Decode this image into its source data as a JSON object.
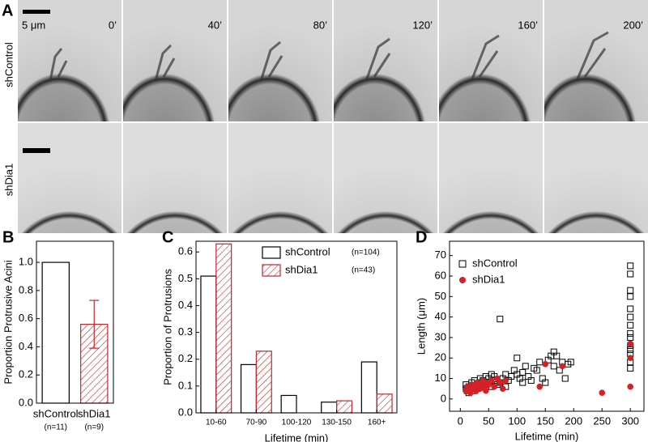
{
  "panel_a": {
    "label": "A",
    "scale_bar": "5 μm",
    "times": [
      "0’",
      "40’",
      "80’",
      "120’",
      "160’",
      "200’"
    ],
    "rows": [
      "shControl",
      "shDia1"
    ]
  },
  "chart_data": [
    {
      "type": "bar",
      "panel": "B",
      "y_label": "Proportion Protrusive Acini",
      "categories": [
        "shControl",
        "shDia1"
      ],
      "category_notes": [
        "(n=11)",
        "(n=9)"
      ],
      "values": [
        1.0,
        0.56
      ],
      "errors": [
        null,
        0.17
      ],
      "colors": [
        "#000000",
        "#c0272d"
      ],
      "hatch": [
        false,
        true
      ],
      "ylim": [
        0,
        1.15
      ],
      "yticks": [
        {
          "value": 0,
          "label": "0.0"
        },
        {
          "value": 0.2,
          "label": "0.2"
        },
        {
          "value": 0.4,
          "label": "0.4"
        },
        {
          "value": 0.6,
          "label": "0.6"
        },
        {
          "value": 0.8,
          "label": "0.8"
        },
        {
          "value": 1,
          "label": "1.0"
        }
      ]
    },
    {
      "type": "bar",
      "panel": "C",
      "y_label": "Proportion of Protrusions",
      "x_label": "Lifetime (min)",
      "categories": [
        "10-60",
        "70-90",
        "100-120",
        "130-150",
        "160+"
      ],
      "series": [
        {
          "name": "shControl",
          "note": "(n=104)",
          "color": "#000000",
          "hatch": false,
          "values": [
            0.51,
            0.18,
            0.065,
            0.04,
            0.19
          ]
        },
        {
          "name": "shDia1",
          "note": "(n=43)",
          "color": "#c0272d",
          "hatch": true,
          "values": [
            0.63,
            0.23,
            0,
            0.045,
            0.07
          ]
        }
      ],
      "ylim": [
        0,
        0.64
      ],
      "yticks": [
        {
          "value": 0,
          "label": "0.0"
        },
        0.1,
        0.2,
        0.3,
        0.4,
        0.5,
        0.6
      ]
    },
    {
      "type": "scatter",
      "panel": "D",
      "y_label": "Length (μm)",
      "x_label": "Lifetime (min)",
      "series": [
        {
          "name": "shControl",
          "color": "#000000",
          "marker": "square",
          "x": [
            10,
            10,
            12,
            15,
            15,
            20,
            20,
            22,
            25,
            25,
            30,
            30,
            35,
            35,
            40,
            40,
            45,
            45,
            50,
            50,
            55,
            55,
            60,
            60,
            65,
            70,
            70,
            75,
            80,
            80,
            85,
            90,
            95,
            100,
            100,
            105,
            110,
            110,
            115,
            120,
            125,
            130,
            135,
            140,
            145,
            150,
            155,
            160,
            165,
            165,
            170,
            175,
            180,
            185,
            190,
            195,
            300,
            300,
            300,
            300,
            300,
            300,
            300,
            300,
            300,
            300,
            300,
            300,
            300,
            300
          ],
          "y": [
            5,
            7,
            4,
            6,
            3,
            8,
            5,
            6,
            4,
            9,
            7,
            5,
            8,
            10,
            6,
            9,
            11,
            7,
            10,
            8,
            6,
            12,
            9,
            11,
            7,
            39,
            8,
            10,
            12,
            6,
            9,
            11,
            14,
            12,
            20,
            10,
            8,
            13,
            16,
            11,
            9,
            15,
            14,
            18,
            10,
            8,
            19,
            21,
            16,
            23,
            21,
            14,
            18,
            10,
            17,
            18,
            65,
            61,
            53,
            50,
            44,
            40,
            36,
            32,
            30,
            26,
            24,
            22,
            18,
            15
          ]
        },
        {
          "name": "shDia1",
          "color": "#d42027",
          "marker": "circle",
          "x": [
            10,
            12,
            15,
            18,
            20,
            22,
            25,
            28,
            30,
            32,
            35,
            38,
            40,
            42,
            45,
            48,
            50,
            55,
            60,
            65,
            70,
            75,
            80,
            140,
            150,
            180,
            250,
            300,
            300,
            300
          ],
          "y": [
            4,
            6,
            5,
            3,
            7,
            5,
            6,
            4,
            8,
            6,
            5,
            7,
            9,
            6,
            4,
            8,
            7,
            9,
            6,
            10,
            8,
            5,
            9,
            6,
            17,
            16,
            3,
            27,
            20,
            6
          ]
        }
      ],
      "xlim": [
        -19,
        324
      ],
      "xticks": [
        0,
        50,
        100,
        150,
        200,
        250,
        300
      ],
      "ylim": [
        -6,
        77
      ],
      "yticks": [
        0,
        10,
        20,
        30,
        40,
        50,
        60,
        70
      ]
    }
  ]
}
